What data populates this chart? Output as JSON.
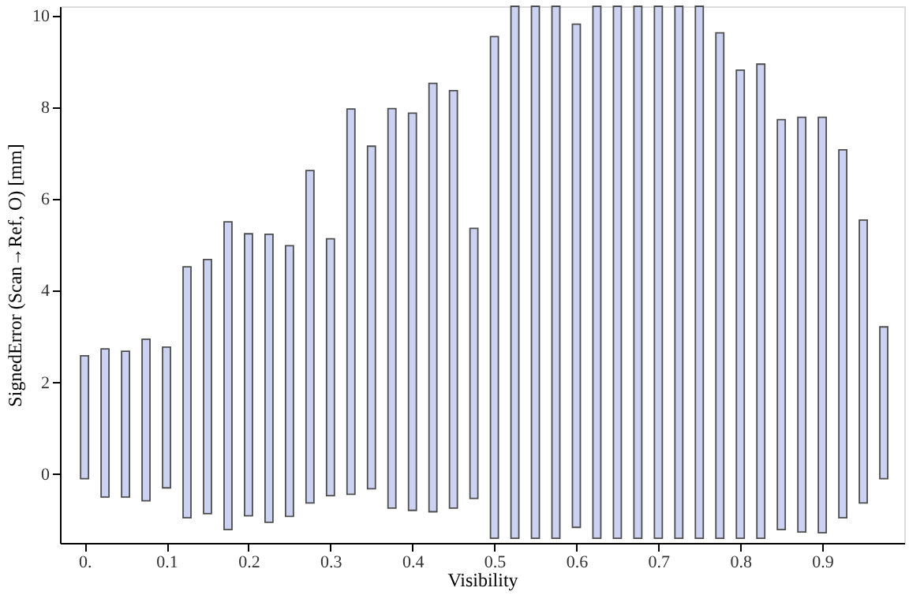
{
  "chart_data": {
    "type": "bar",
    "xlabel": "Visibility",
    "ylabel": "SignedError (Scan→Ref, O) [mm]",
    "x": [
      0,
      0.025,
      0.05,
      0.075,
      0.1,
      0.125,
      0.15,
      0.175,
      0.2,
      0.225,
      0.25,
      0.275,
      0.3,
      0.325,
      0.35,
      0.375,
      0.4,
      0.425,
      0.45,
      0.475,
      0.5,
      0.525,
      0.55,
      0.575,
      0.6,
      0.625,
      0.65,
      0.675,
      0.7,
      0.725,
      0.75,
      0.775,
      0.8,
      0.825,
      0.85,
      0.875,
      0.9,
      0.925,
      0.95,
      0.975
    ],
    "base": [
      -0.1,
      -0.5,
      -0.5,
      -0.58,
      -0.3,
      -0.95,
      -0.86,
      -1.21,
      -0.91,
      -1.05,
      -0.92,
      -0.63,
      -0.47,
      -0.44,
      -0.32,
      -0.74,
      -0.79,
      -0.82,
      -0.74,
      -0.53,
      -1.4,
      -1.4,
      -1.4,
      -1.4,
      -1.16,
      -1.4,
      -1.4,
      -1.4,
      -1.4,
      -1.4,
      -1.4,
      -1.4,
      -1.4,
      -1.4,
      -1.21,
      -1.26,
      -1.28,
      -0.95,
      -0.63,
      -0.1
    ],
    "values": [
      2.68,
      3.23,
      3.18,
      3.52,
      3.07,
      5.47,
      5.54,
      6.71,
      6.15,
      6.28,
      5.9,
      7.25,
      5.6,
      8.4,
      7.47,
      8.71,
      8.66,
      9.34,
      9.1,
      5.89,
      10.94,
      11.6,
      11.6,
      11.6,
      10.97,
      11.6,
      11.6,
      11.6,
      11.6,
      11.6,
      11.6,
      11.02,
      10.21,
      10.34,
      8.94,
      9.04,
      9.06,
      8.02,
      6.17,
      3.31
    ],
    "color": "#ccd3f2",
    "xlim": [
      -0.03,
      1.0
    ],
    "xticks": [
      {
        "value": 0,
        "label": "0."
      },
      0.1,
      0.2,
      0.3,
      0.4,
      0.5,
      0.6,
      0.7,
      0.8,
      0.9
    ],
    "ylim": [
      -1.5,
      10.2
    ],
    "yticks": [
      0,
      2,
      4,
      6,
      8,
      10
    ],
    "grid": false
  }
}
